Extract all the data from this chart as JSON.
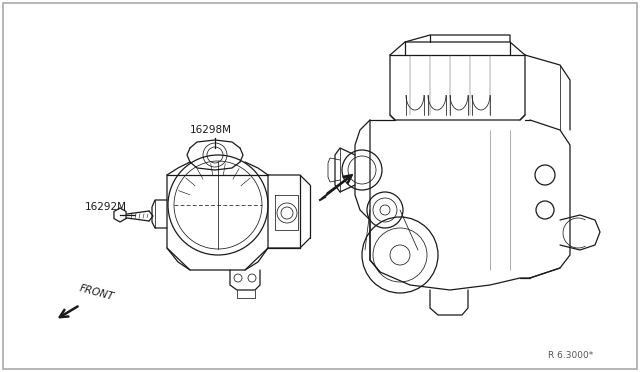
{
  "bg_color": "#ffffff",
  "line_color": "#1a1a1a",
  "text_color": "#1a1a1a",
  "label_16298M": "16298M",
  "label_16292M": "16292M",
  "label_front": "FRONT",
  "label_ref": "R 6.3000*",
  "fig_width": 6.4,
  "fig_height": 3.72,
  "dpi": 100,
  "border_color": "#aaaaaa"
}
